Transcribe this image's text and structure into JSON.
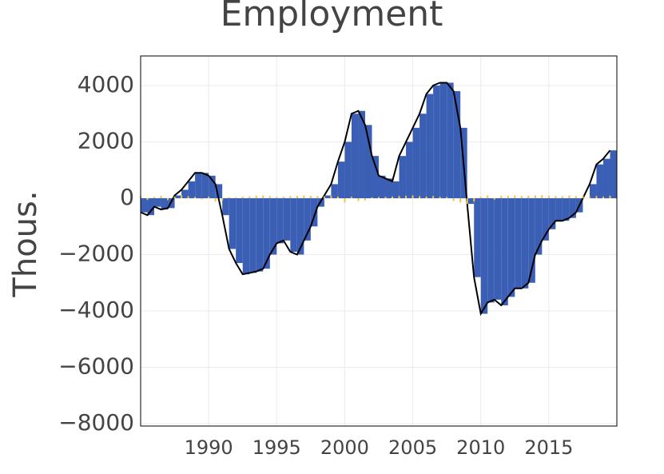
{
  "chart_data": {
    "type": "bar-line",
    "title": "Employment",
    "y_label": "Thous.",
    "x": [
      1985,
      1985.5,
      1986,
      1986.5,
      1987,
      1987.5,
      1988,
      1988.5,
      1989,
      1989.5,
      1990,
      1990.5,
      1991,
      1991.5,
      1992,
      1992.5,
      1993,
      1993.5,
      1994,
      1994.5,
      1995,
      1995.5,
      1996,
      1996.5,
      1997,
      1997.5,
      1998,
      1998.5,
      1999,
      1999.5,
      2000,
      2000.5,
      2001,
      2001.5,
      2002,
      2002.5,
      2003,
      2003.5,
      2004,
      2004.5,
      2005,
      2005.5,
      2006,
      2006.5,
      2007,
      2007.5,
      2008,
      2008.5,
      2009,
      2009.5,
      2010,
      2010.5,
      2011,
      2011.5,
      2012,
      2012.5,
      2013,
      2013.5,
      2014,
      2014.5,
      2015,
      2015.5,
      2016,
      2016.5,
      2017,
      2017.5,
      2018,
      2018.5,
      2019,
      2019.5
    ],
    "series": [
      {
        "color": "#3a5fb5",
        "line_color": "#000000",
        "values": [
          -500,
          -600,
          -300,
          -400,
          -350,
          100,
          300,
          600,
          900,
          900,
          800,
          500,
          -600,
          -1800,
          -2300,
          -2700,
          -2650,
          -2600,
          -2500,
          -2000,
          -1600,
          -1500,
          -1900,
          -2000,
          -1500,
          -1000,
          -300,
          100,
          500,
          1300,
          2000,
          3000,
          3100,
          2600,
          1500,
          800,
          700,
          600,
          1500,
          2000,
          2500,
          3000,
          3700,
          4000,
          4100,
          4100,
          3800,
          2500,
          -200,
          -2800,
          -4100,
          -3700,
          -3600,
          -3800,
          -3500,
          -3200,
          -3200,
          -3000,
          -2000,
          -1500,
          -1100,
          -800,
          -800,
          -700,
          -500,
          0,
          500,
          1200,
          1400,
          1700
        ]
      },
      {
        "color": "#f5c242",
        "values": [
          80,
          -60,
          50,
          90,
          -70,
          60,
          100,
          70,
          50,
          -40,
          60,
          -120,
          -80,
          40,
          30,
          60,
          70,
          90,
          100,
          80,
          50,
          60,
          80,
          90,
          100,
          90,
          80,
          70,
          90,
          60,
          -150,
          50,
          -100,
          -80,
          30,
          40,
          50,
          60,
          80,
          90,
          100,
          70,
          60,
          80,
          50,
          40,
          -100,
          -150,
          -200,
          -120,
          60,
          100,
          -50,
          80,
          90,
          100,
          80,
          90,
          100,
          110,
          90,
          80,
          70,
          100,
          80,
          90,
          70,
          80,
          60,
          90
        ]
      }
    ],
    "xlim": [
      1985,
      2020
    ],
    "ylim": [
      -8085,
      5050
    ],
    "xticks": [
      1990,
      1995,
      2000,
      2005,
      2010,
      2015
    ],
    "yticks": [
      -8000,
      -6000,
      -4000,
      -2000,
      0,
      2000,
      4000
    ],
    "grid": true
  }
}
